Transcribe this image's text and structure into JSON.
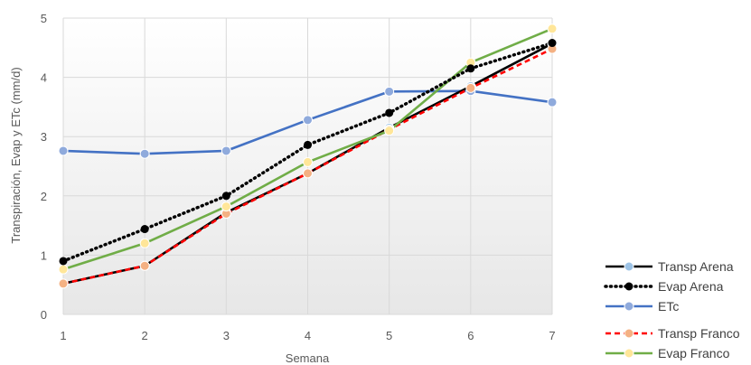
{
  "chart_data": {
    "type": "line",
    "xlabel": "Semana",
    "ylabel": "Transpiración, Evap y ETc (mm/d)",
    "x": [
      1,
      2,
      3,
      4,
      5,
      6,
      7
    ],
    "xlim": [
      1,
      7
    ],
    "ylim": [
      0,
      5
    ],
    "yticks": [
      0,
      1,
      2,
      3,
      4,
      5
    ],
    "grid": true,
    "legend_position": "bottom-right",
    "series": [
      {
        "name": "Transp Arena",
        "values": [
          0.52,
          0.82,
          1.72,
          2.38,
          3.15,
          3.85,
          4.57
        ],
        "color": "#000000",
        "line_style": "solid",
        "marker_color": "#9dc3e6"
      },
      {
        "name": "Evap Arena",
        "values": [
          0.9,
          1.44,
          2.0,
          2.86,
          3.4,
          4.15,
          4.58
        ],
        "color": "#000000",
        "line_style": "dotted",
        "marker_color": "#000000"
      },
      {
        "name": "ETc",
        "values": [
          2.76,
          2.71,
          2.76,
          3.28,
          3.76,
          3.77,
          3.58
        ],
        "color": "#4472c4",
        "line_style": "solid",
        "marker_color": "#8faadc"
      },
      {
        "name": "Transp Franco",
        "values": [
          0.52,
          0.82,
          1.7,
          2.38,
          3.12,
          3.82,
          4.48
        ],
        "color": "#ff0000",
        "line_style": "dashed",
        "marker_color": "#f4b183"
      },
      {
        "name": "Evap Franco",
        "values": [
          0.76,
          1.2,
          1.82,
          2.57,
          3.1,
          4.25,
          4.82
        ],
        "color": "#70ad47",
        "line_style": "solid",
        "marker_color": "#ffe699"
      }
    ]
  }
}
